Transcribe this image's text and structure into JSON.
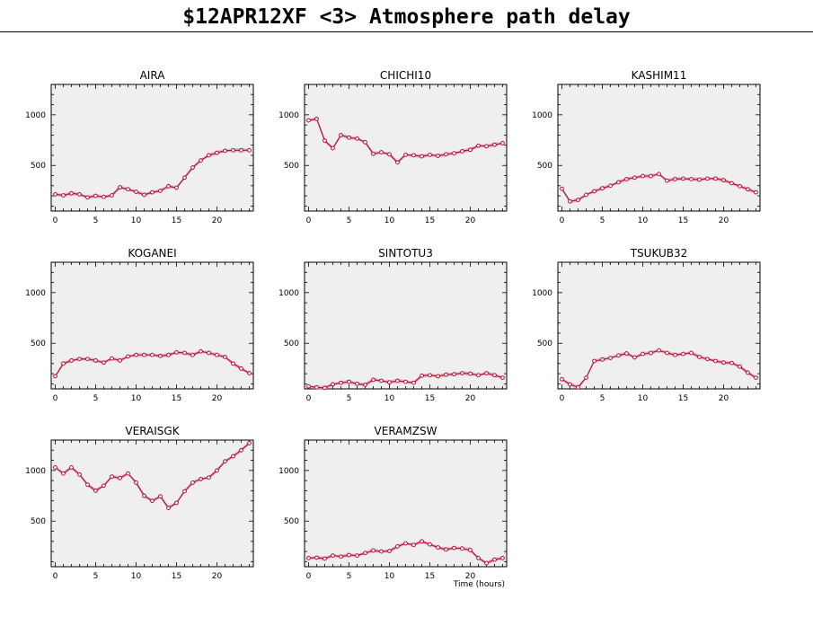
{
  "page": {
    "title": "$12APR12XF <3>  Atmosphere path delay"
  },
  "colors": {
    "line": "#b0103a",
    "band": "#e6a6b4",
    "panel_bg": "#efefef"
  },
  "chart_data": [
    {
      "type": "line",
      "title": "AIRA",
      "xlim": [
        -0.5,
        24.5
      ],
      "ylim": [
        50,
        1300
      ],
      "xticks": [
        0,
        5,
        10,
        15,
        20
      ],
      "yticks": [
        500,
        1000
      ],
      "xlabel": "",
      "ylabel": "",
      "x": [
        0,
        1,
        2,
        3,
        4,
        5,
        6,
        7,
        8,
        9,
        10,
        11,
        12,
        13,
        14,
        15,
        16,
        17,
        18,
        19,
        20,
        21,
        22,
        23,
        24
      ],
      "values": [
        215,
        205,
        225,
        215,
        185,
        200,
        190,
        205,
        285,
        265,
        240,
        210,
        235,
        250,
        295,
        280,
        380,
        480,
        550,
        600,
        625,
        645,
        650,
        650,
        650
      ]
    },
    {
      "type": "line",
      "title": "CHICHI10",
      "xlim": [
        -0.5,
        24.5
      ],
      "ylim": [
        50,
        1300
      ],
      "xticks": [
        0,
        5,
        10,
        15,
        20
      ],
      "yticks": [
        500,
        1000
      ],
      "xlabel": "",
      "ylabel": "",
      "x": [
        0,
        1,
        2,
        3,
        4,
        5,
        6,
        7,
        8,
        9,
        10,
        11,
        12,
        13,
        14,
        15,
        16,
        17,
        18,
        19,
        20,
        21,
        22,
        23,
        24
      ],
      "values": [
        945,
        960,
        745,
        670,
        800,
        775,
        765,
        730,
        615,
        630,
        610,
        530,
        605,
        600,
        590,
        605,
        595,
        610,
        620,
        640,
        655,
        695,
        690,
        705,
        720
      ]
    },
    {
      "type": "line",
      "title": "KASHIM11",
      "xlim": [
        -0.5,
        24.5
      ],
      "ylim": [
        50,
        1300
      ],
      "xticks": [
        0,
        5,
        10,
        15,
        20
      ],
      "yticks": [
        500,
        1000
      ],
      "xlabel": "",
      "ylabel": "",
      "x": [
        0,
        1,
        2,
        3,
        4,
        5,
        6,
        7,
        8,
        9,
        10,
        11,
        12,
        13,
        14,
        15,
        16,
        17,
        18,
        19,
        20,
        21,
        22,
        23,
        24
      ],
      "values": [
        270,
        145,
        160,
        210,
        245,
        275,
        300,
        335,
        365,
        380,
        395,
        395,
        415,
        350,
        365,
        370,
        365,
        360,
        370,
        370,
        355,
        325,
        295,
        265,
        235
      ]
    },
    {
      "type": "line",
      "title": "KOGANEI",
      "xlim": [
        -0.5,
        24.5
      ],
      "ylim": [
        50,
        1300
      ],
      "xticks": [
        0,
        5,
        10,
        15,
        20
      ],
      "yticks": [
        500,
        1000
      ],
      "xlabel": "",
      "ylabel": "",
      "x": [
        0,
        1,
        2,
        3,
        4,
        5,
        6,
        7,
        8,
        9,
        10,
        11,
        12,
        13,
        14,
        15,
        16,
        17,
        18,
        19,
        20,
        21,
        22,
        23,
        24
      ],
      "values": [
        175,
        300,
        330,
        345,
        345,
        330,
        310,
        350,
        330,
        370,
        385,
        385,
        385,
        375,
        385,
        410,
        405,
        385,
        420,
        405,
        385,
        365,
        300,
        250,
        205
      ]
    },
    {
      "type": "line",
      "title": "SINTOTU3",
      "xlim": [
        -0.5,
        24.5
      ],
      "ylim": [
        50,
        1300
      ],
      "xticks": [
        0,
        5,
        10,
        15,
        20
      ],
      "yticks": [
        500,
        1000
      ],
      "xlabel": "",
      "ylabel": "",
      "x": [
        0,
        1,
        2,
        3,
        4,
        5,
        6,
        7,
        8,
        9,
        10,
        11,
        12,
        13,
        14,
        15,
        16,
        17,
        18,
        19,
        20,
        21,
        22,
        23,
        24
      ],
      "values": [
        75,
        65,
        60,
        95,
        110,
        120,
        100,
        90,
        140,
        130,
        115,
        130,
        120,
        110,
        180,
        185,
        175,
        190,
        195,
        205,
        200,
        185,
        205,
        185,
        160
      ]
    },
    {
      "type": "line",
      "title": "TSUKUB32",
      "xlim": [
        -0.5,
        24.5
      ],
      "ylim": [
        50,
        1300
      ],
      "xticks": [
        0,
        5,
        10,
        15,
        20
      ],
      "yticks": [
        500,
        1000
      ],
      "xlabel": "",
      "ylabel": "",
      "x": [
        0,
        1,
        2,
        3,
        4,
        5,
        6,
        7,
        8,
        9,
        10,
        11,
        12,
        13,
        14,
        15,
        16,
        17,
        18,
        19,
        20,
        21,
        22,
        23,
        24
      ],
      "values": [
        145,
        95,
        65,
        160,
        325,
        340,
        355,
        380,
        400,
        360,
        395,
        405,
        430,
        405,
        385,
        395,
        405,
        365,
        345,
        325,
        310,
        305,
        270,
        210,
        160
      ]
    },
    {
      "type": "line",
      "title": "VERAISGK",
      "xlim": [
        -0.5,
        24.5
      ],
      "ylim": [
        50,
        1300
      ],
      "xticks": [
        0,
        5,
        10,
        15,
        20
      ],
      "yticks": [
        500,
        1000
      ],
      "xlabel": "",
      "ylabel": "",
      "x": [
        0,
        1,
        2,
        3,
        4,
        5,
        6,
        7,
        8,
        9,
        10,
        11,
        12,
        13,
        14,
        15,
        16,
        17,
        18,
        19,
        20,
        21,
        22,
        23,
        24
      ],
      "values": [
        1030,
        970,
        1030,
        960,
        860,
        800,
        850,
        940,
        925,
        970,
        880,
        750,
        700,
        745,
        630,
        680,
        795,
        880,
        915,
        930,
        1000,
        1090,
        1140,
        1200,
        1270
      ]
    },
    {
      "type": "line",
      "title": "VERAMZSW",
      "xlim": [
        -0.5,
        24.5
      ],
      "ylim": [
        50,
        1300
      ],
      "xticks": [
        0,
        5,
        10,
        15,
        20
      ],
      "yticks": [
        500,
        1000
      ],
      "xlabel": "Time (hours)",
      "ylabel": "",
      "x": [
        0,
        1,
        2,
        3,
        4,
        5,
        6,
        7,
        8,
        9,
        10,
        11,
        12,
        13,
        14,
        15,
        16,
        17,
        18,
        19,
        20,
        21,
        22,
        23,
        24
      ],
      "values": [
        135,
        140,
        130,
        160,
        150,
        165,
        160,
        185,
        210,
        200,
        205,
        250,
        280,
        265,
        300,
        270,
        240,
        220,
        235,
        230,
        215,
        135,
        85,
        120,
        135
      ]
    }
  ]
}
